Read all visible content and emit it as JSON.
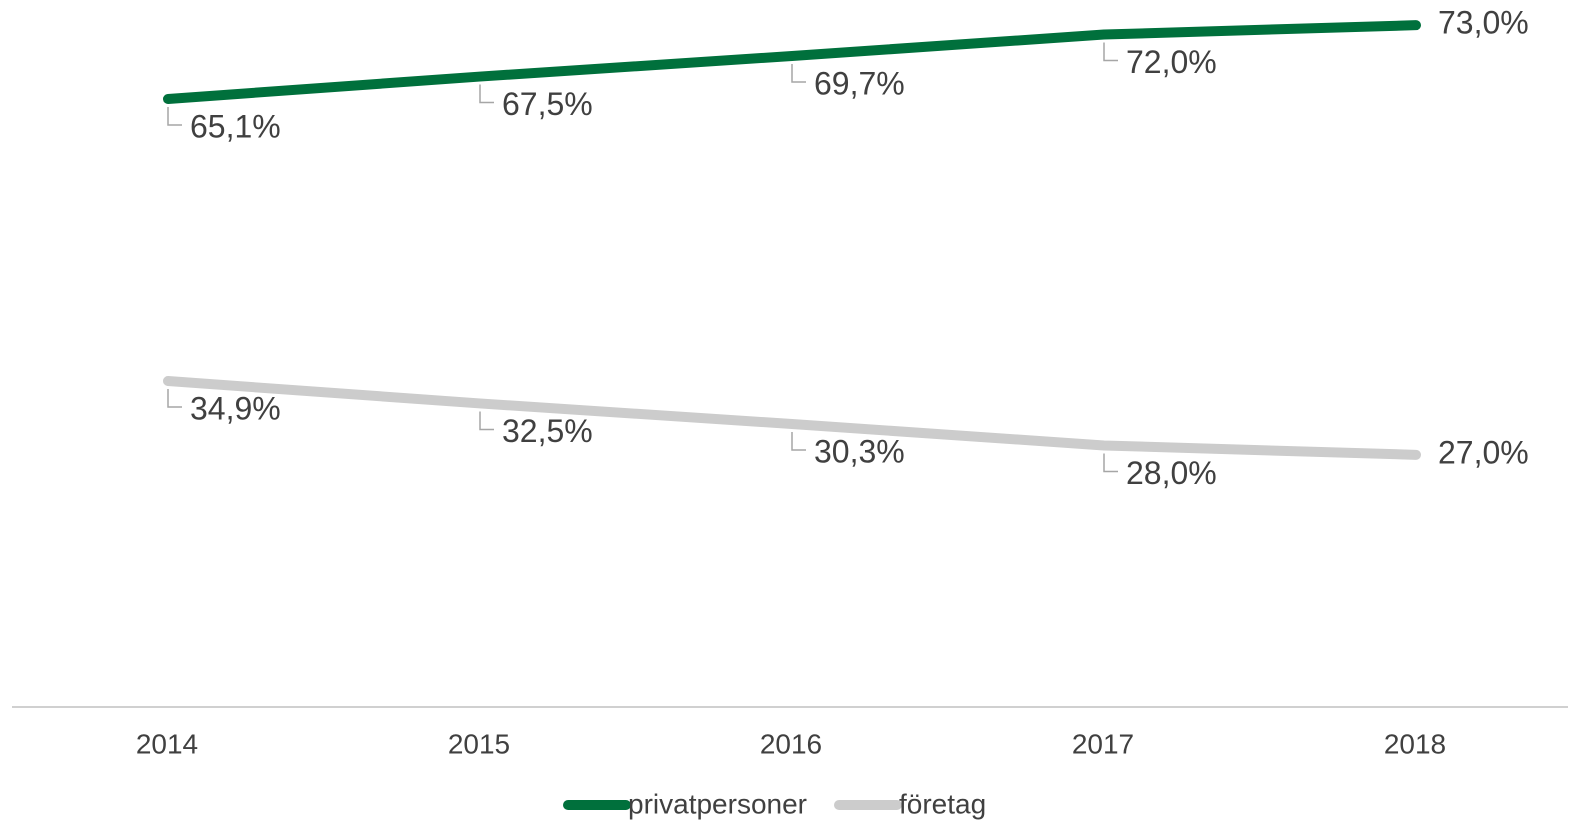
{
  "chart_data": {
    "type": "line",
    "categories": [
      "2014",
      "2015",
      "2016",
      "2017",
      "2018"
    ],
    "series": [
      {
        "name": "privatpersoner",
        "color": "#00703c",
        "values": [
          65.1,
          67.5,
          69.7,
          72.0,
          73.0
        ],
        "value_labels": [
          "65,1%",
          "67,5%",
          "69,7%",
          "72,0%",
          "73,0%"
        ]
      },
      {
        "name": "företag",
        "color": "#cccccc",
        "values": [
          34.9,
          32.5,
          30.3,
          28.0,
          27.0
        ],
        "value_labels": [
          "34,9%",
          "32,5%",
          "30,3%",
          "28,0%",
          "27,0%"
        ]
      }
    ],
    "ylim": [
      0,
      75
    ],
    "legend": "bottom"
  }
}
